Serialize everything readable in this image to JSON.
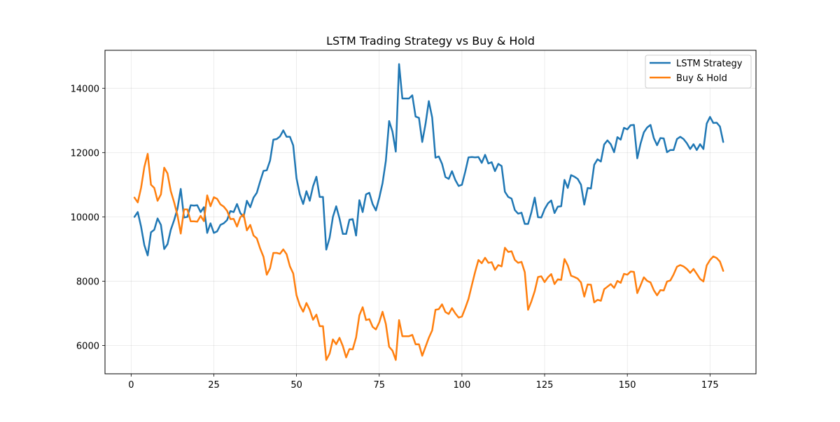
{
  "chart_data": {
    "type": "line",
    "title": "LSTM Trading Strategy vs Buy & Hold",
    "xlabel": "",
    "ylabel": "",
    "xlim": [
      -7.9,
      188.9
    ],
    "ylim": [
      5120,
      15180
    ],
    "xticks": [
      0,
      25,
      50,
      75,
      100,
      125,
      150,
      175
    ],
    "yticks": [
      6000,
      8000,
      10000,
      12000,
      14000
    ],
    "grid": true,
    "legend_position": "top-right",
    "colors": {
      "lstm": "#1f77b4",
      "buyhold": "#ff7f0e"
    },
    "series": [
      {
        "name": "LSTM Strategy",
        "color": "#1f77b4",
        "x": [
          1,
          2,
          3,
          4,
          5,
          6,
          7,
          8,
          9,
          10,
          11,
          12,
          13,
          14,
          15,
          16,
          17,
          18,
          19,
          20,
          21,
          22,
          23,
          24,
          25,
          26,
          27,
          28,
          29,
          30,
          31,
          32,
          33,
          34,
          35,
          36,
          37,
          38,
          39,
          40,
          41,
          42,
          43,
          44,
          45,
          46,
          47,
          48,
          49,
          50,
          51,
          52,
          53,
          54,
          55,
          56,
          57,
          58,
          59,
          60,
          61,
          62,
          63,
          64,
          65,
          66,
          67,
          68,
          69,
          70,
          71,
          72,
          73,
          74,
          75,
          76,
          77,
          78,
          79,
          80,
          81,
          82,
          83,
          84,
          85,
          86,
          87,
          88,
          89,
          90,
          91,
          92,
          93,
          94,
          95,
          96,
          97,
          98,
          99,
          100,
          101,
          102,
          103,
          104,
          105,
          106,
          107,
          108,
          109,
          110,
          111,
          112,
          113,
          114,
          115,
          116,
          117,
          118,
          119,
          120,
          121,
          122,
          123,
          124,
          125,
          126,
          127,
          128,
          129,
          130,
          131,
          132,
          133,
          134,
          135,
          136,
          137,
          138,
          139,
          140,
          141,
          142,
          143,
          144,
          145,
          146,
          147,
          148,
          149,
          150,
          151,
          152,
          153,
          154,
          155,
          156,
          157,
          158,
          159,
          160,
          161,
          162,
          163,
          164,
          165,
          166,
          167,
          168,
          169,
          170,
          171,
          172,
          173,
          174,
          175,
          176,
          177,
          178,
          179
        ],
        "values": [
          10000,
          10150,
          9700,
          9120,
          8800,
          9520,
          9600,
          9950,
          9750,
          9000,
          9150,
          9600,
          9900,
          10250,
          10870,
          9980,
          10000,
          10360,
          10350,
          10360,
          10150,
          10300,
          9500,
          9800,
          9500,
          9550,
          9750,
          9800,
          9900,
          10180,
          10150,
          10400,
          10120,
          10000,
          10500,
          10300,
          10600,
          10750,
          11100,
          11430,
          11450,
          11750,
          12400,
          12420,
          12500,
          12690,
          12490,
          12490,
          12220,
          11200,
          10700,
          10400,
          10800,
          10500,
          10950,
          11250,
          10620,
          10620,
          8980,
          9350,
          10000,
          10330,
          9950,
          9470,
          9470,
          9910,
          9930,
          9420,
          10520,
          10150,
          10700,
          10750,
          10400,
          10200,
          10590,
          11050,
          11740,
          12980,
          12650,
          12030,
          14750,
          13680,
          13680,
          13680,
          13780,
          13120,
          13080,
          12330,
          12890,
          13600,
          13090,
          11840,
          11880,
          11650,
          11240,
          11180,
          11420,
          11150,
          10960,
          11000,
          11400,
          11850,
          11860,
          11850,
          11860,
          11680,
          11930,
          11660,
          11700,
          11420,
          11650,
          11580,
          10780,
          10620,
          10570,
          10210,
          10100,
          10130,
          9780,
          9780,
          10140,
          10600,
          9990,
          9980,
          10240,
          10420,
          10510,
          10120,
          10320,
          10330,
          11150,
          10900,
          11300,
          11250,
          11180,
          11000,
          10380,
          10900,
          10880,
          11620,
          11790,
          11720,
          12250,
          12380,
          12260,
          12010,
          12480,
          12400,
          12770,
          12720,
          12850,
          12860,
          11820,
          12280,
          12630,
          12780,
          12860,
          12450,
          12230,
          12450,
          12440,
          12010,
          12080,
          12080,
          12420,
          12490,
          12420,
          12290,
          12110,
          12260,
          12080,
          12260,
          12110,
          12900,
          13110,
          12920,
          12930,
          12810,
          12330
        ]
      },
      {
        "name": "Buy & Hold",
        "color": "#ff7f0e",
        "x": [
          1,
          2,
          3,
          4,
          5,
          6,
          7,
          8,
          9,
          10,
          11,
          12,
          13,
          14,
          15,
          16,
          17,
          18,
          19,
          20,
          21,
          22,
          23,
          24,
          25,
          26,
          27,
          28,
          29,
          30,
          31,
          32,
          33,
          34,
          35,
          36,
          37,
          38,
          39,
          40,
          41,
          42,
          43,
          44,
          45,
          46,
          47,
          48,
          49,
          50,
          51,
          52,
          53,
          54,
          55,
          56,
          57,
          58,
          59,
          60,
          61,
          62,
          63,
          64,
          65,
          66,
          67,
          68,
          69,
          70,
          71,
          72,
          73,
          74,
          75,
          76,
          77,
          78,
          79,
          80,
          81,
          82,
          83,
          84,
          85,
          86,
          87,
          88,
          89,
          90,
          91,
          92,
          93,
          94,
          95,
          96,
          97,
          98,
          99,
          100,
          101,
          102,
          103,
          104,
          105,
          106,
          107,
          108,
          109,
          110,
          111,
          112,
          113,
          114,
          115,
          116,
          117,
          118,
          119,
          120,
          121,
          122,
          123,
          124,
          125,
          126,
          127,
          128,
          129,
          130,
          131,
          132,
          133,
          134,
          135,
          136,
          137,
          138,
          139,
          140,
          141,
          142,
          143,
          144,
          145,
          146,
          147,
          148,
          149,
          150,
          151,
          152,
          153,
          154,
          155,
          156,
          157,
          158,
          159,
          160,
          161,
          162,
          163,
          164,
          165,
          166,
          167,
          168,
          169,
          170,
          171,
          172,
          173,
          174,
          175,
          176,
          177,
          178,
          179
        ],
        "values": [
          10600,
          10450,
          10900,
          11550,
          11960,
          11000,
          10900,
          10500,
          10700,
          11530,
          11350,
          10800,
          10450,
          10050,
          9480,
          10230,
          10230,
          9860,
          9860,
          9850,
          10030,
          9870,
          10670,
          10330,
          10610,
          10560,
          10390,
          10320,
          10190,
          9930,
          9940,
          9700,
          9990,
          10080,
          9580,
          9750,
          9420,
          9330,
          9020,
          8760,
          8200,
          8400,
          8880,
          8880,
          8850,
          8990,
          8840,
          8460,
          8240,
          7560,
          7250,
          7050,
          7320,
          7110,
          6800,
          6960,
          6600,
          6600,
          5550,
          5750,
          6190,
          6040,
          6240,
          5980,
          5630,
          5890,
          5880,
          6250,
          6940,
          7190,
          6790,
          6820,
          6580,
          6500,
          6720,
          7050,
          6670,
          5960,
          5840,
          5550,
          6790,
          6290,
          6290,
          6290,
          6330,
          6040,
          6040,
          5680,
          5960,
          6240,
          6470,
          7110,
          7130,
          7280,
          7040,
          6980,
          7160,
          7000,
          6870,
          6900,
          7160,
          7450,
          7880,
          8290,
          8660,
          8560,
          8730,
          8570,
          8590,
          8350,
          8500,
          8460,
          9040,
          8910,
          8930,
          8660,
          8570,
          8600,
          8280,
          7110,
          7370,
          7690,
          8130,
          8150,
          7970,
          8120,
          8220,
          7910,
          8060,
          8040,
          8690,
          8490,
          8170,
          8130,
          8080,
          7960,
          7520,
          7900,
          7890,
          7340,
          7420,
          7390,
          7750,
          7830,
          7910,
          7790,
          8010,
          7950,
          8230,
          8200,
          8300,
          8290,
          7630,
          7870,
          8120,
          8010,
          7960,
          7720,
          7560,
          7720,
          7710,
          7990,
          8020,
          8210,
          8450,
          8500,
          8460,
          8380,
          8260,
          8380,
          8230,
          8070,
          7990,
          8490,
          8660,
          8770,
          8720,
          8610,
          8320
        ]
      }
    ]
  }
}
